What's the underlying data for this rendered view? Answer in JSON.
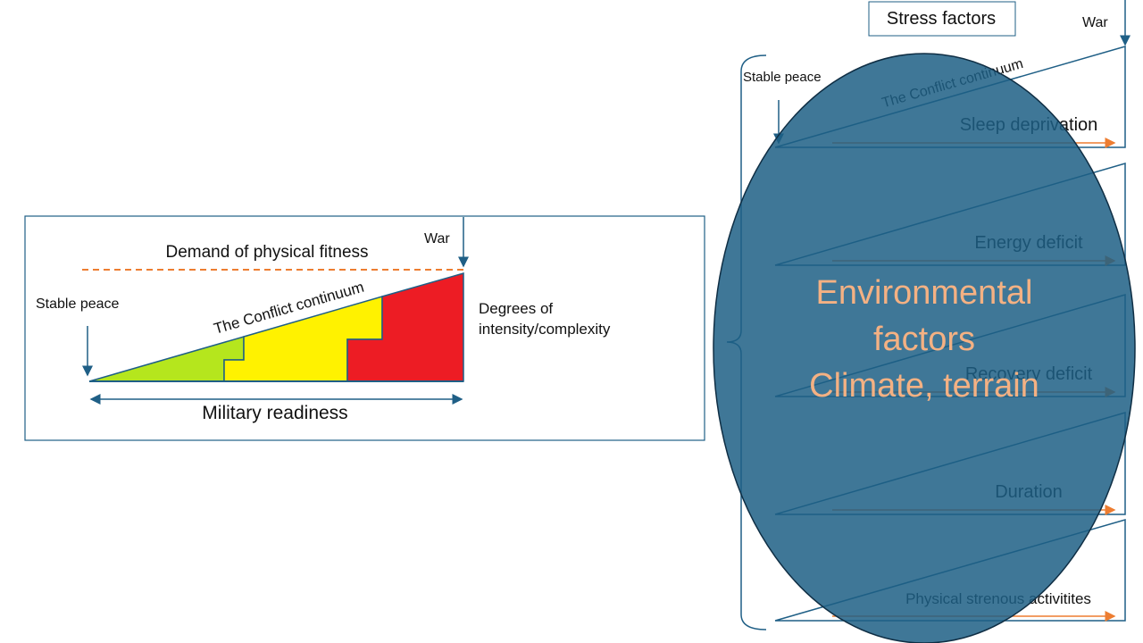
{
  "left_panel": {
    "demand_label": "Demand of physical fitness",
    "war_label": "War",
    "stable_peace_label": "Stable peace",
    "continuum_label": "The Conflict continuum",
    "degrees_label": "Degrees of intensity/complexity",
    "readiness_label": "Military readiness"
  },
  "right_panel": {
    "stress_factors_title": "Stress factors",
    "war_label": "War",
    "stable_peace_label": "Stable peace",
    "continuum_label": "The Conflict continuum",
    "factors": [
      "Sleep deprivation",
      "Energy deficit",
      "Recovery deficit",
      "Duration",
      "Physical strenous activitites"
    ],
    "environment": {
      "title": "Environmental factors",
      "detail": "Climate, terrain"
    }
  }
}
